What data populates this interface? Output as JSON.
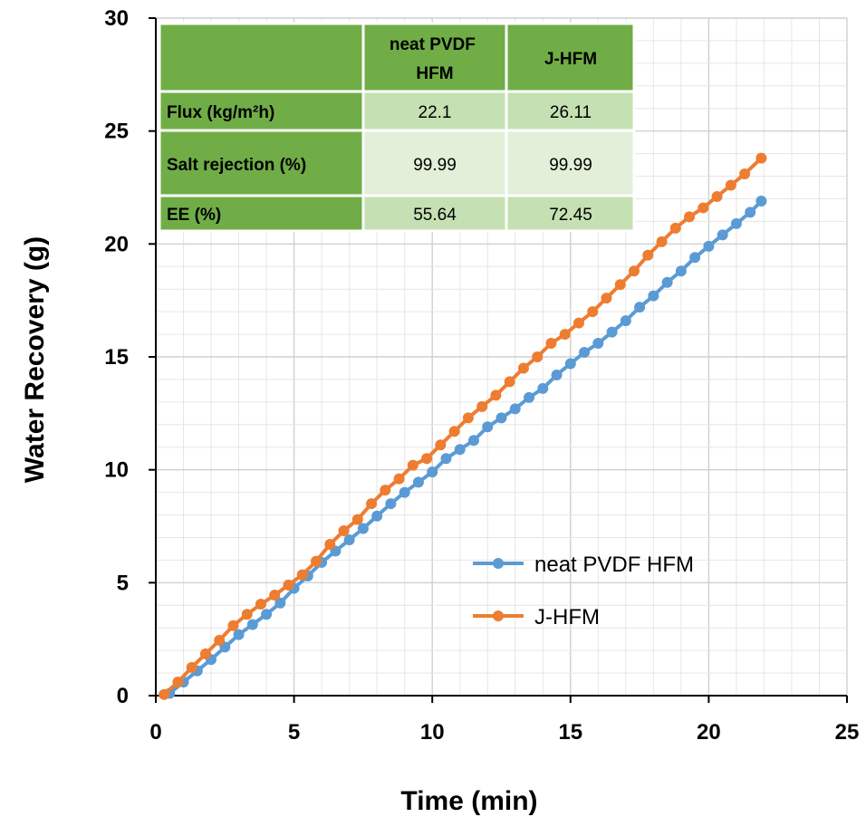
{
  "chart_data": {
    "type": "line",
    "xlabel": "Time (min)",
    "ylabel": "Water Recovery (g)",
    "xlim": [
      0,
      25
    ],
    "ylim": [
      0,
      30
    ],
    "x_ticks": [
      "0",
      "5",
      "10",
      "15",
      "20",
      "25"
    ],
    "y_ticks": [
      "0",
      "5",
      "10",
      "15",
      "20",
      "25",
      "30"
    ],
    "grid": true,
    "legend_position": "bottom-right",
    "series": [
      {
        "name": "neat PVDF HFM",
        "color": "#5b9bd5",
        "points": [
          [
            0.5,
            0.1
          ],
          [
            1.0,
            0.6
          ],
          [
            1.5,
            1.1
          ],
          [
            2.0,
            1.6
          ],
          [
            2.5,
            2.15
          ],
          [
            3.0,
            2.7
          ],
          [
            3.5,
            3.15
          ],
          [
            4.0,
            3.6
          ],
          [
            4.5,
            4.1
          ],
          [
            5.0,
            4.75
          ],
          [
            5.5,
            5.3
          ],
          [
            6.0,
            5.9
          ],
          [
            6.5,
            6.4
          ],
          [
            7.0,
            6.9
          ],
          [
            7.5,
            7.4
          ],
          [
            8.0,
            7.95
          ],
          [
            8.5,
            8.5
          ],
          [
            9.0,
            9.0
          ],
          [
            9.5,
            9.45
          ],
          [
            10.0,
            9.9
          ],
          [
            10.5,
            10.5
          ],
          [
            11.0,
            10.9
          ],
          [
            11.5,
            11.3
          ],
          [
            12.0,
            11.9
          ],
          [
            12.5,
            12.3
          ],
          [
            13.0,
            12.7
          ],
          [
            13.5,
            13.2
          ],
          [
            14.0,
            13.6
          ],
          [
            14.5,
            14.2
          ],
          [
            15.0,
            14.7
          ],
          [
            15.5,
            15.2
          ],
          [
            16.0,
            15.6
          ],
          [
            16.5,
            16.1
          ],
          [
            17.0,
            16.6
          ],
          [
            17.5,
            17.2
          ],
          [
            18.0,
            17.7
          ],
          [
            18.5,
            18.3
          ],
          [
            19.0,
            18.8
          ],
          [
            19.5,
            19.4
          ],
          [
            20.0,
            19.9
          ],
          [
            20.5,
            20.4
          ],
          [
            21.0,
            20.9
          ],
          [
            21.5,
            21.4
          ],
          [
            21.9,
            21.9
          ]
        ]
      },
      {
        "name": "J-HFM",
        "color": "#ed7d31",
        "points": [
          [
            0.3,
            0.05
          ],
          [
            0.8,
            0.6
          ],
          [
            1.3,
            1.25
          ],
          [
            1.8,
            1.85
          ],
          [
            2.3,
            2.45
          ],
          [
            2.8,
            3.1
          ],
          [
            3.3,
            3.6
          ],
          [
            3.8,
            4.05
          ],
          [
            4.3,
            4.45
          ],
          [
            4.8,
            4.9
          ],
          [
            5.3,
            5.35
          ],
          [
            5.8,
            5.95
          ],
          [
            6.3,
            6.7
          ],
          [
            6.8,
            7.3
          ],
          [
            7.3,
            7.8
          ],
          [
            7.8,
            8.5
          ],
          [
            8.3,
            9.1
          ],
          [
            8.8,
            9.6
          ],
          [
            9.3,
            10.2
          ],
          [
            9.8,
            10.5
          ],
          [
            10.3,
            11.1
          ],
          [
            10.8,
            11.7
          ],
          [
            11.3,
            12.3
          ],
          [
            11.8,
            12.8
          ],
          [
            12.3,
            13.3
          ],
          [
            12.8,
            13.9
          ],
          [
            13.3,
            14.5
          ],
          [
            13.8,
            15.0
          ],
          [
            14.3,
            15.6
          ],
          [
            14.8,
            16.0
          ],
          [
            15.3,
            16.5
          ],
          [
            15.8,
            17.0
          ],
          [
            16.3,
            17.6
          ],
          [
            16.8,
            18.2
          ],
          [
            17.3,
            18.8
          ],
          [
            17.8,
            19.5
          ],
          [
            18.3,
            20.1
          ],
          [
            18.8,
            20.7
          ],
          [
            19.3,
            21.2
          ],
          [
            19.8,
            21.6
          ],
          [
            20.3,
            22.1
          ],
          [
            20.8,
            22.6
          ],
          [
            21.3,
            23.1
          ],
          [
            21.9,
            23.8
          ]
        ]
      }
    ],
    "table": {
      "header": [
        "neat  PVDF HFM",
        "J-HFM"
      ],
      "rows": [
        {
          "label": "Flux (kg/m²h)",
          "values": [
            "22.1",
            "26.11"
          ]
        },
        {
          "label": "Salt rejection (%)",
          "values": [
            "99.99",
            "99.99"
          ]
        },
        {
          "label": "EE (%)",
          "values": [
            "55.64",
            "72.45"
          ]
        }
      ],
      "colors": {
        "header": "#70ad47",
        "light": "#c5e0b3",
        "lighter": "#e2efd9"
      }
    }
  }
}
